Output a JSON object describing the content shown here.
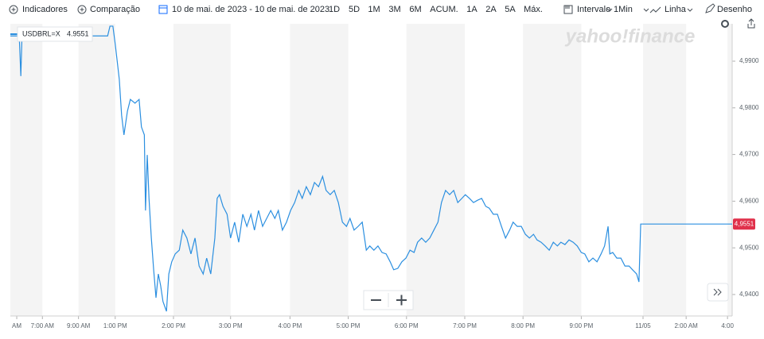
{
  "toolbar": {
    "indicators": "Indicadores",
    "comparison": "Comparação",
    "date_range": "10 de mai. de 2023 - 10 de mai. de 2023",
    "ranges": [
      "1D",
      "5D",
      "1M",
      "3M",
      "6M",
      "ACUM.",
      "1A",
      "2A",
      "5A",
      "Máx."
    ],
    "interval_label": "Intervalo",
    "interval": "1Min",
    "chart_type": "Linha",
    "draw": "Desenho"
  },
  "chart_data": {
    "type": "line",
    "watermark": "yahoo!finance",
    "grid": "bands",
    "x": [
      0,
      0.12,
      0.15,
      0.18,
      0.2,
      0.64,
      1.05,
      1.39,
      1.67,
      1.71,
      1.76,
      1.8,
      1.87,
      1.91,
      1.95,
      2.01,
      2.06,
      2.14,
      2.21,
      2.25,
      2.3,
      2.32,
      2.35,
      2.38,
      2.42,
      2.46,
      2.5,
      2.54,
      2.58,
      2.62,
      2.68,
      2.72,
      2.77,
      2.83,
      2.9,
      2.96,
      3.03,
      3.1,
      3.17,
      3.24,
      3.31,
      3.37,
      3.44,
      3.51,
      3.55,
      3.59,
      3.65,
      3.72,
      3.78,
      3.85,
      3.92,
      3.99,
      4.06,
      4.13,
      4.19,
      4.26,
      4.33,
      4.4,
      4.47,
      4.54,
      4.6,
      4.67,
      4.74,
      4.81,
      4.88,
      4.95,
      5.01,
      5.08,
      5.15,
      5.22,
      5.29,
      5.36,
      5.42,
      5.49,
      5.56,
      5.63,
      5.7,
      5.77,
      5.83,
      5.9,
      5.97,
      6.04,
      6.11,
      6.17,
      6.24,
      6.31,
      6.38,
      6.45,
      6.52,
      6.58,
      6.65,
      6.72,
      6.79,
      6.86,
      6.93,
      6.99,
      7.06,
      7.13,
      7.2,
      7.27,
      7.34,
      7.4,
      7.47,
      7.54,
      7.61,
      7.68,
      7.75,
      7.81,
      7.88,
      7.95,
      8.02,
      8.09,
      8.16,
      8.22,
      8.29,
      8.36,
      8.43,
      8.5,
      8.57,
      8.63,
      8.7,
      8.77,
      8.84,
      8.91,
      8.98,
      9.04,
      9.11,
      9.18,
      9.25,
      9.32,
      9.39,
      9.45,
      9.52,
      9.59,
      9.66,
      9.73,
      9.8,
      9.86,
      9.93,
      10,
      10.07,
      10.14,
      10.2,
      10.26,
      10.29,
      10.34,
      10.41,
      10.48,
      10.55,
      10.62,
      10.68,
      10.75,
      10.79,
      10.82,
      12.39
    ],
    "series": [
      {
        "name": "USDBRL=X",
        "color": "#2b8fe0",
        "values": [
          4.9954,
          4.9954,
          4.9963,
          4.9868,
          4.9954,
          4.9954,
          4.9946,
          4.9954,
          4.9954,
          4.9975,
          4.9975,
          4.9937,
          4.9861,
          4.9784,
          4.9742,
          4.9793,
          4.9818,
          4.981,
          4.9818,
          4.9759,
          4.9742,
          4.958,
          4.9699,
          4.9606,
          4.9521,
          4.9453,
          4.9393,
          4.9444,
          4.9419,
          4.9385,
          4.9364,
          4.9444,
          4.947,
          4.9487,
          4.9495,
          4.9538,
          4.9521,
          4.9487,
          4.9521,
          4.9461,
          4.9444,
          4.9478,
          4.9444,
          4.9521,
          4.9606,
          4.9614,
          4.9589,
          4.9572,
          4.9521,
          4.9555,
          4.9512,
          4.9572,
          4.9546,
          4.9572,
          4.9538,
          4.958,
          4.9546,
          4.9563,
          4.958,
          4.9563,
          4.958,
          4.9538,
          4.9555,
          4.958,
          4.9597,
          4.9623,
          4.9606,
          4.9631,
          4.9614,
          4.964,
          4.9631,
          4.9653,
          4.9623,
          4.9614,
          4.9623,
          4.9597,
          4.9555,
          4.9546,
          4.9563,
          4.9538,
          4.9546,
          4.9555,
          4.9495,
          4.9504,
          4.9495,
          4.9504,
          4.949,
          4.9487,
          4.947,
          4.9453,
          4.9456,
          4.947,
          4.9478,
          4.9495,
          4.949,
          4.9512,
          4.9521,
          4.9512,
          4.9521,
          4.9538,
          4.9555,
          4.9597,
          4.9623,
          4.9614,
          4.9623,
          4.9597,
          4.9606,
          4.9614,
          4.9606,
          4.9597,
          4.9602,
          4.9606,
          4.9589,
          4.9585,
          4.9572,
          4.9572,
          4.9546,
          4.9521,
          4.9538,
          4.9555,
          4.9546,
          4.9546,
          4.9529,
          4.9521,
          4.9529,
          4.9517,
          4.9512,
          4.9504,
          4.9495,
          4.9512,
          4.9504,
          4.9512,
          4.9507,
          4.9517,
          4.9512,
          4.9504,
          4.949,
          4.9487,
          4.947,
          4.9478,
          4.947,
          4.9487,
          4.9504,
          4.9546,
          4.9487,
          4.949,
          4.9478,
          4.9478,
          4.9461,
          4.9461,
          4.9453,
          4.9444,
          4.9427,
          4.9551,
          4.9551
        ]
      }
    ],
    "legend_value": 4.9551,
    "price_tag": {
      "value": 4.9551,
      "label": "4,9551"
    },
    "xlim": [
      0,
      12.39
    ],
    "xticks": [
      {
        "value": 0.11,
        "label": "AM"
      },
      {
        "value": 0.55,
        "label": "7:00 AM"
      },
      {
        "value": 1.17,
        "label": "9:00 AM"
      },
      {
        "value": 1.8,
        "label": "1:00 PM"
      },
      {
        "value": 2.8,
        "label": "2:00 PM"
      },
      {
        "value": 3.78,
        "label": "3:00 PM"
      },
      {
        "value": 4.8,
        "label": "4:00 PM"
      },
      {
        "value": 5.8,
        "label": "5:00 PM"
      },
      {
        "value": 6.8,
        "label": "6:00 PM"
      },
      {
        "value": 7.8,
        "label": "7:00 PM"
      },
      {
        "value": 8.8,
        "label": "8:00 PM"
      },
      {
        "value": 9.8,
        "label": "9:00 PM"
      },
      {
        "value": 10.86,
        "label": "11/05"
      },
      {
        "value": 11.6,
        "label": "2:00 AM"
      },
      {
        "value": 12.31,
        "label": "4:00"
      }
    ],
    "ylim": [
      4.9354,
      4.998
    ],
    "yticks": [
      {
        "value": 4.94,
        "label": "4,9400"
      },
      {
        "value": 4.95,
        "label": "4,9500"
      },
      {
        "value": 4.96,
        "label": "4,9600"
      },
      {
        "value": 4.97,
        "label": "4,9700"
      },
      {
        "value": 4.98,
        "label": "4,9800"
      },
      {
        "value": 4.99,
        "label": "4,9900"
      }
    ]
  }
}
